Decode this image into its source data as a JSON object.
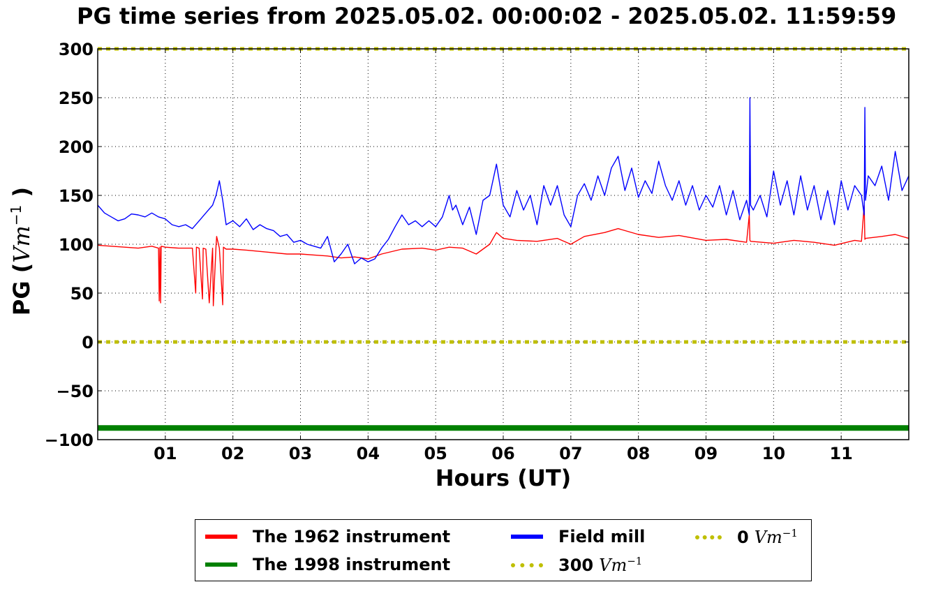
{
  "chart_data": {
    "type": "line",
    "title": "PG time series from 2025.05.02. 00:00:02 - 2025.05.02. 11:59:59",
    "xlabel": "Hours (UT)",
    "ylabel": "PG (Vm^-1)",
    "ylabel_main": "PG (",
    "ylabel_unit": "Vm",
    "ylabel_exp": "−1",
    "ylabel_close": ")",
    "xlim": [
      0,
      12
    ],
    "ylim": [
      -100,
      300
    ],
    "x_ticks": [
      1,
      2,
      3,
      4,
      5,
      6,
      7,
      8,
      9,
      10,
      11
    ],
    "x_tick_labels": [
      "01",
      "02",
      "03",
      "04",
      "05",
      "06",
      "07",
      "08",
      "09",
      "10",
      "11"
    ],
    "y_ticks": [
      -100,
      -50,
      0,
      50,
      100,
      150,
      200,
      250,
      300
    ],
    "y_tick_labels": [
      "−100",
      "−50",
      "0",
      "50",
      "100",
      "150",
      "200",
      "250",
      "300"
    ],
    "grid": true,
    "legend_position": "bottom",
    "series": [
      {
        "name": "The 1962 instrument",
        "color": "#ff0000",
        "x": [
          0,
          0.2,
          0.4,
          0.6,
          0.8,
          0.9,
          0.91,
          0.92,
          0.93,
          0.94,
          1.0,
          1.2,
          1.4,
          1.45,
          1.46,
          1.5,
          1.55,
          1.56,
          1.6,
          1.65,
          1.7,
          1.71,
          1.75,
          1.76,
          1.8,
          1.85,
          1.86,
          1.9,
          2.0,
          2.2,
          2.5,
          2.8,
          3.0,
          3.2,
          3.4,
          3.6,
          3.8,
          4.0,
          4.2,
          4.5,
          4.8,
          5.0,
          5.2,
          5.4,
          5.6,
          5.8,
          5.9,
          6.0,
          6.2,
          6.5,
          6.8,
          7.0,
          7.2,
          7.5,
          7.7,
          8.0,
          8.3,
          8.6,
          9.0,
          9.3,
          9.6,
          9.64,
          9.65,
          9.66,
          10.0,
          10.3,
          10.6,
          10.9,
          11.2,
          11.3,
          11.34,
          11.35,
          11.36,
          11.6,
          11.8,
          12.0
        ],
        "y": [
          99,
          98,
          97,
          96,
          98,
          96,
          42,
          97,
          40,
          98,
          97,
          96,
          96,
          50,
          97,
          96,
          44,
          96,
          95,
          40,
          96,
          37,
          98,
          108,
          96,
          38,
          97,
          95,
          95,
          94,
          92,
          90,
          90,
          89,
          88,
          86,
          87,
          85,
          90,
          95,
          96,
          94,
          97,
          96,
          90,
          100,
          112,
          106,
          104,
          103,
          106,
          100,
          108,
          112,
          116,
          110,
          107,
          109,
          104,
          105,
          102,
          130,
          104,
          103,
          101,
          104,
          102,
          99,
          104,
          103,
          140,
          105,
          106,
          108,
          110,
          106
        ]
      },
      {
        "name": "The 1998 instrument",
        "color": "#008000",
        "x": [
          0,
          12
        ],
        "y": [
          -88,
          -88
        ]
      },
      {
        "name": "Field mill",
        "color": "#0000ff",
        "x": [
          0,
          0.1,
          0.2,
          0.3,
          0.4,
          0.5,
          0.6,
          0.7,
          0.8,
          0.9,
          1.0,
          1.1,
          1.2,
          1.3,
          1.4,
          1.5,
          1.6,
          1.7,
          1.75,
          1.8,
          1.85,
          1.9,
          2.0,
          2.1,
          2.2,
          2.3,
          2.4,
          2.5,
          2.6,
          2.7,
          2.8,
          2.9,
          3.0,
          3.1,
          3.2,
          3.3,
          3.4,
          3.5,
          3.6,
          3.7,
          3.8,
          3.9,
          4.0,
          4.1,
          4.2,
          4.3,
          4.4,
          4.5,
          4.6,
          4.7,
          4.8,
          4.9,
          5.0,
          5.1,
          5.2,
          5.25,
          5.3,
          5.4,
          5.5,
          5.6,
          5.7,
          5.8,
          5.9,
          6.0,
          6.1,
          6.2,
          6.3,
          6.4,
          6.5,
          6.6,
          6.7,
          6.8,
          6.9,
          7.0,
          7.1,
          7.2,
          7.3,
          7.4,
          7.5,
          7.6,
          7.7,
          7.8,
          7.9,
          8.0,
          8.1,
          8.2,
          8.3,
          8.4,
          8.5,
          8.6,
          8.7,
          8.8,
          8.9,
          9.0,
          9.1,
          9.2,
          9.3,
          9.4,
          9.5,
          9.6,
          9.64,
          9.65,
          9.66,
          9.7,
          9.8,
          9.9,
          10.0,
          10.1,
          10.2,
          10.3,
          10.4,
          10.5,
          10.6,
          10.7,
          10.8,
          10.9,
          11.0,
          11.1,
          11.2,
          11.3,
          11.34,
          11.35,
          11.36,
          11.4,
          11.5,
          11.6,
          11.7,
          11.8,
          11.9,
          12.0
        ],
        "y": [
          140,
          132,
          128,
          124,
          126,
          131,
          130,
          128,
          132,
          128,
          126,
          120,
          118,
          120,
          116,
          124,
          132,
          140,
          150,
          165,
          145,
          120,
          124,
          118,
          126,
          115,
          120,
          116,
          114,
          108,
          110,
          102,
          104,
          100,
          98,
          96,
          108,
          82,
          90,
          100,
          80,
          86,
          82,
          85,
          96,
          105,
          118,
          130,
          120,
          124,
          118,
          124,
          118,
          128,
          150,
          135,
          140,
          120,
          138,
          110,
          145,
          150,
          182,
          140,
          128,
          155,
          135,
          150,
          120,
          160,
          140,
          160,
          130,
          118,
          150,
          162,
          145,
          170,
          150,
          178,
          190,
          155,
          178,
          148,
          165,
          152,
          185,
          160,
          145,
          165,
          140,
          160,
          135,
          150,
          138,
          160,
          130,
          155,
          125,
          145,
          130,
          250,
          140,
          135,
          150,
          128,
          175,
          140,
          165,
          130,
          170,
          135,
          160,
          125,
          155,
          120,
          165,
          135,
          160,
          150,
          130,
          240,
          145,
          170,
          160,
          180,
          145,
          195,
          155,
          170
        ]
      },
      {
        "name": "300",
        "unit": "Vm",
        "unit_exp": "−1",
        "color": "#bfbf00",
        "style": "dotted",
        "x": [
          0,
          12
        ],
        "y": [
          300,
          300
        ]
      },
      {
        "name": "0",
        "unit": "Vm",
        "unit_exp": "−1",
        "color": "#bfbf00",
        "style": "dotted",
        "x": [
          0,
          12
        ],
        "y": [
          0,
          0
        ]
      }
    ],
    "legend": [
      {
        "label": "The 1962 instrument",
        "color": "#ff0000",
        "style": "solid"
      },
      {
        "label": "The 1998 instrument",
        "color": "#008000",
        "style": "solid"
      },
      {
        "label": "Field mill",
        "color": "#0000ff",
        "style": "solid"
      },
      {
        "label": "300",
        "unit": "Vm",
        "unit_exp": "−1",
        "color": "#bfbf00",
        "style": "dotted"
      },
      {
        "label": "0",
        "unit": "Vm",
        "unit_exp": "−1",
        "color": "#bfbf00",
        "style": "dotted"
      }
    ]
  }
}
